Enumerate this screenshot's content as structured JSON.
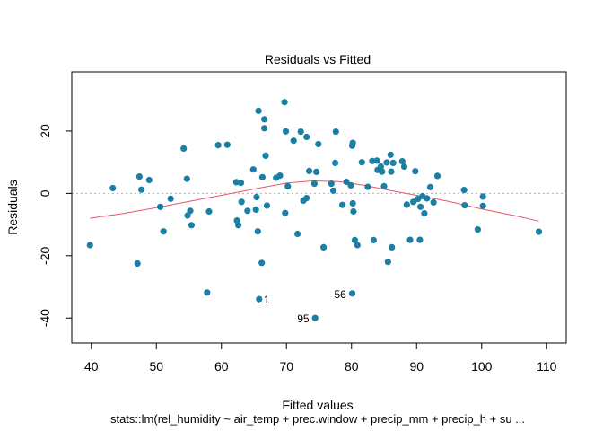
{
  "chart_data": {
    "type": "scatter",
    "title": "Residuals vs Fitted",
    "xlabel": "Fitted values",
    "ylabel": "Residuals",
    "caption": "stats::lm(rel_humidity ~ air_temp + prec.window + precip_mm + precip_h + su ...",
    "xlim": [
      37,
      113
    ],
    "ylim": [
      -48,
      39
    ],
    "xticks": [
      40,
      50,
      60,
      70,
      80,
      90,
      100,
      110
    ],
    "yticks": [
      -40,
      -20,
      0,
      20
    ],
    "reference_line_y": 0,
    "grid": false,
    "point_color": "#1a7fa3",
    "smooth_color": "#e8566a",
    "reference_color": "#b0b0b0",
    "points": [
      {
        "x": 39.8,
        "y": -16.6
      },
      {
        "x": 43.3,
        "y": 1.7
      },
      {
        "x": 47.1,
        "y": -22.5
      },
      {
        "x": 47.4,
        "y": 5.4
      },
      {
        "x": 47.7,
        "y": 1.2
      },
      {
        "x": 48.9,
        "y": 4.3
      },
      {
        "x": 50.6,
        "y": -4.3
      },
      {
        "x": 51.1,
        "y": -12.2
      },
      {
        "x": 52.2,
        "y": -1.7
      },
      {
        "x": 54.2,
        "y": 14.4
      },
      {
        "x": 54.7,
        "y": 4.7
      },
      {
        "x": 54.8,
        "y": -7.1
      },
      {
        "x": 55.2,
        "y": -5.6
      },
      {
        "x": 55.4,
        "y": -10.2
      },
      {
        "x": 57.8,
        "y": -31.8
      },
      {
        "x": 58.1,
        "y": -5.8
      },
      {
        "x": 59.5,
        "y": 15.5
      },
      {
        "x": 60.9,
        "y": 15.6
      },
      {
        "x": 62.3,
        "y": 3.6
      },
      {
        "x": 62.4,
        "y": -8.7
      },
      {
        "x": 62.6,
        "y": -10.2
      },
      {
        "x": 63.0,
        "y": 3.4
      },
      {
        "x": 63.1,
        "y": -2.7
      },
      {
        "x": 64.0,
        "y": -5.6
      },
      {
        "x": 64.9,
        "y": 7.7
      },
      {
        "x": 65.3,
        "y": -5.2
      },
      {
        "x": 65.4,
        "y": -1.2
      },
      {
        "x": 65.6,
        "y": -12.2
      },
      {
        "x": 65.7,
        "y": 26.5
      },
      {
        "x": 65.8,
        "y": -33.9
      },
      {
        "x": 66.2,
        "y": -22.3
      },
      {
        "x": 66.3,
        "y": 5.2
      },
      {
        "x": 66.6,
        "y": 23.8
      },
      {
        "x": 66.6,
        "y": 20.9
      },
      {
        "x": 66.8,
        "y": 12.1
      },
      {
        "x": 67.0,
        "y": -3.9
      },
      {
        "x": 68.4,
        "y": 5.0
      },
      {
        "x": 69.0,
        "y": 5.7
      },
      {
        "x": 69.7,
        "y": 29.3
      },
      {
        "x": 69.8,
        "y": -6.3
      },
      {
        "x": 69.9,
        "y": 19.9
      },
      {
        "x": 70.2,
        "y": 2.3
      },
      {
        "x": 71.1,
        "y": 16.9
      },
      {
        "x": 71.7,
        "y": -13.0
      },
      {
        "x": 72.2,
        "y": 19.8
      },
      {
        "x": 72.6,
        "y": -2.3
      },
      {
        "x": 73.1,
        "y": -1.5
      },
      {
        "x": 73.1,
        "y": 18.1
      },
      {
        "x": 73.5,
        "y": 7.2
      },
      {
        "x": 74.3,
        "y": 3.1
      },
      {
        "x": 74.4,
        "y": -40.0
      },
      {
        "x": 74.6,
        "y": 6.9
      },
      {
        "x": 74.9,
        "y": 15.8
      },
      {
        "x": 75.7,
        "y": -17.3
      },
      {
        "x": 76.9,
        "y": 3.1
      },
      {
        "x": 77.2,
        "y": 0.9
      },
      {
        "x": 77.5,
        "y": 9.8
      },
      {
        "x": 77.6,
        "y": 19.8
      },
      {
        "x": 78.6,
        "y": -3.7
      },
      {
        "x": 79.2,
        "y": 3.7
      },
      {
        "x": 79.9,
        "y": 2.6
      },
      {
        "x": 80.1,
        "y": -32.1
      },
      {
        "x": 80.1,
        "y": 15.3
      },
      {
        "x": 80.2,
        "y": 16.2
      },
      {
        "x": 80.2,
        "y": -3.2
      },
      {
        "x": 80.3,
        "y": -5.8
      },
      {
        "x": 80.5,
        "y": -15.0
      },
      {
        "x": 80.9,
        "y": -16.6
      },
      {
        "x": 81.6,
        "y": 10.0
      },
      {
        "x": 82.5,
        "y": 2.1
      },
      {
        "x": 83.2,
        "y": 10.4
      },
      {
        "x": 83.4,
        "y": -15.0
      },
      {
        "x": 83.9,
        "y": 10.5
      },
      {
        "x": 84.0,
        "y": 7.5
      },
      {
        "x": 84.5,
        "y": 8.6
      },
      {
        "x": 84.7,
        "y": 7.0
      },
      {
        "x": 85.0,
        "y": 2.3
      },
      {
        "x": 85.4,
        "y": 9.9
      },
      {
        "x": 85.6,
        "y": -22.0
      },
      {
        "x": 86.0,
        "y": 12.4
      },
      {
        "x": 86.1,
        "y": 7.0
      },
      {
        "x": 86.2,
        "y": -17.3
      },
      {
        "x": 86.4,
        "y": 9.8
      },
      {
        "x": 87.8,
        "y": 10.3
      },
      {
        "x": 88.1,
        "y": 8.6
      },
      {
        "x": 88.5,
        "y": -3.6
      },
      {
        "x": 89.0,
        "y": -14.9
      },
      {
        "x": 89.5,
        "y": -2.7
      },
      {
        "x": 89.8,
        "y": 7.1
      },
      {
        "x": 90.2,
        "y": -1.8
      },
      {
        "x": 90.5,
        "y": -14.9
      },
      {
        "x": 90.6,
        "y": -4.3
      },
      {
        "x": 90.9,
        "y": -0.9
      },
      {
        "x": 91.2,
        "y": -6.4
      },
      {
        "x": 91.6,
        "y": -1.6
      },
      {
        "x": 92.1,
        "y": 2.0
      },
      {
        "x": 92.6,
        "y": -2.9
      },
      {
        "x": 93.2,
        "y": 5.6
      },
      {
        "x": 97.3,
        "y": 1.1
      },
      {
        "x": 97.4,
        "y": -3.8
      },
      {
        "x": 99.4,
        "y": -11.6
      },
      {
        "x": 100.2,
        "y": -1.0
      },
      {
        "x": 100.2,
        "y": -4.0
      },
      {
        "x": 108.8,
        "y": -12.3
      }
    ],
    "point_labels": [
      {
        "text": "1",
        "x": 65.8,
        "y": -33.9
      },
      {
        "text": "95",
        "x": 74.4,
        "y": -40.0
      },
      {
        "text": "56",
        "x": 80.1,
        "y": -32.1
      }
    ],
    "smooth": [
      {
        "x": 39.8,
        "y": -8.0
      },
      {
        "x": 45,
        "y": -6.4
      },
      {
        "x": 50,
        "y": -4.6
      },
      {
        "x": 55,
        "y": -2.6
      },
      {
        "x": 60,
        "y": -0.6
      },
      {
        "x": 65,
        "y": 1.4
      },
      {
        "x": 70,
        "y": 3.3
      },
      {
        "x": 74,
        "y": 4.0
      },
      {
        "x": 78,
        "y": 3.8
      },
      {
        "x": 82,
        "y": 2.6
      },
      {
        "x": 86,
        "y": 0.9
      },
      {
        "x": 90,
        "y": -0.6
      },
      {
        "x": 95,
        "y": -2.6
      },
      {
        "x": 100,
        "y": -5.0
      },
      {
        "x": 105,
        "y": -7.1
      },
      {
        "x": 108.8,
        "y": -8.9
      }
    ]
  }
}
